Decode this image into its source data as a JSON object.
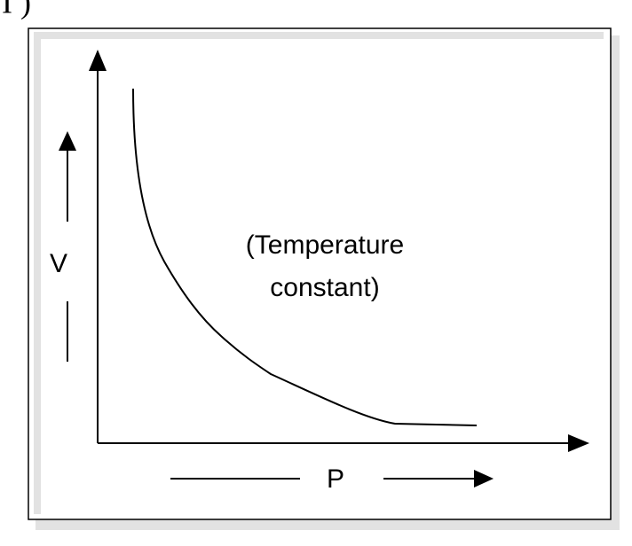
{
  "caption": "I )",
  "diagram": {
    "y_label": "V",
    "x_label": "P",
    "annotation": [
      "(Temperature",
      "constant)"
    ]
  }
}
